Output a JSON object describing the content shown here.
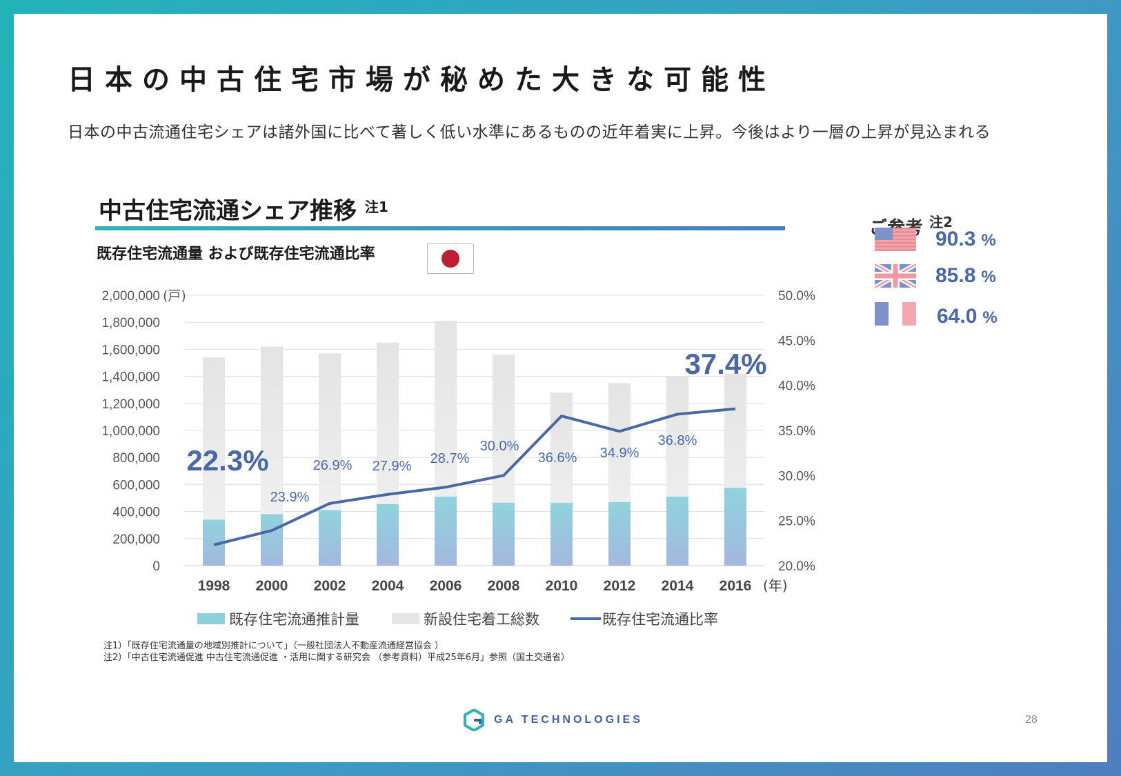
{
  "title": "日本の中古住宅市場が秘めた大きな可能性",
  "subtitle": "日本の中古流通住宅シェアは諸外国に比べて著しく低い水準にあるものの近年着実に上昇。今後はより一層の上昇が見込まれる",
  "chart_section": {
    "heading": "中古住宅流通シェア推移",
    "heading_note": "注1",
    "subheading": "既存住宅流通量 および既存住宅流通比率"
  },
  "chart_data": {
    "type": "bar",
    "categories": [
      "1998",
      "2000",
      "2002",
      "2004",
      "2006",
      "2008",
      "2010",
      "2012",
      "2014",
      "2016"
    ],
    "x_unit": "(年)",
    "series": [
      {
        "name": "既存住宅流通推計量",
        "type": "bar",
        "axis": "left",
        "color": "#8ecfdc",
        "values": [
          340000,
          380000,
          410000,
          455000,
          510000,
          465000,
          465000,
          470000,
          510000,
          575000
        ]
      },
      {
        "name": "新設住宅着工総数",
        "type": "bar",
        "axis": "left",
        "color": "#e6e6e6",
        "values": [
          1540000,
          1620000,
          1570000,
          1650000,
          1810000,
          1560000,
          1280000,
          1350000,
          1400000,
          1420000
        ]
      },
      {
        "name": "既存住宅流通比率",
        "type": "line",
        "axis": "right",
        "color": "#4a68a8",
        "values": [
          22.3,
          23.9,
          26.9,
          27.9,
          28.7,
          30.0,
          36.6,
          34.9,
          36.8,
          37.4
        ]
      }
    ],
    "data_labels": [
      "22.3%",
      "23.9%",
      "26.9%",
      "27.9%",
      "28.7%",
      "30.0%",
      "36.6%",
      "34.9%",
      "36.8%",
      "37.4%"
    ],
    "y_left": {
      "ticks": [
        "2,000,000",
        "1,800,000",
        "1,600,000",
        "1,400,000",
        "1,200,000",
        "1,000,000",
        "800,000",
        "600,000",
        "400,000",
        "200,000",
        "0"
      ],
      "unit": "(戸)",
      "ylim": [
        0,
        2000000
      ]
    },
    "y_right": {
      "ticks": [
        "50.0%",
        "45.0%",
        "40.0%",
        "35.0%",
        "30.0%",
        "25.0%",
        "20.0%"
      ],
      "ylim": [
        20,
        50
      ]
    },
    "legend": [
      "既存住宅流通推計量",
      "新設住宅着工総数",
      "既存住宅流通比率"
    ],
    "legend_position": "bottom",
    "grid": true
  },
  "reference": {
    "heading": "ご参考",
    "heading_note": "注2",
    "items": [
      {
        "country": "US",
        "value": "90.3",
        "unit": "%"
      },
      {
        "country": "UK",
        "value": "85.8",
        "unit": "%"
      },
      {
        "country": "FR",
        "value": "64.0",
        "unit": "%"
      }
    ]
  },
  "notes": [
    "注1）「既存住宅流通量の地域別推計について」（一般社団法人不動産流通経営協会 ）",
    "注2）「中古住宅流通促進 中古住宅流通促進 ・活用に関する研究会 （参考資料）平成25年6月」参照（国土交通省）"
  ],
  "logo_text": "GA TECHNOLOGIES",
  "page_number": "28"
}
